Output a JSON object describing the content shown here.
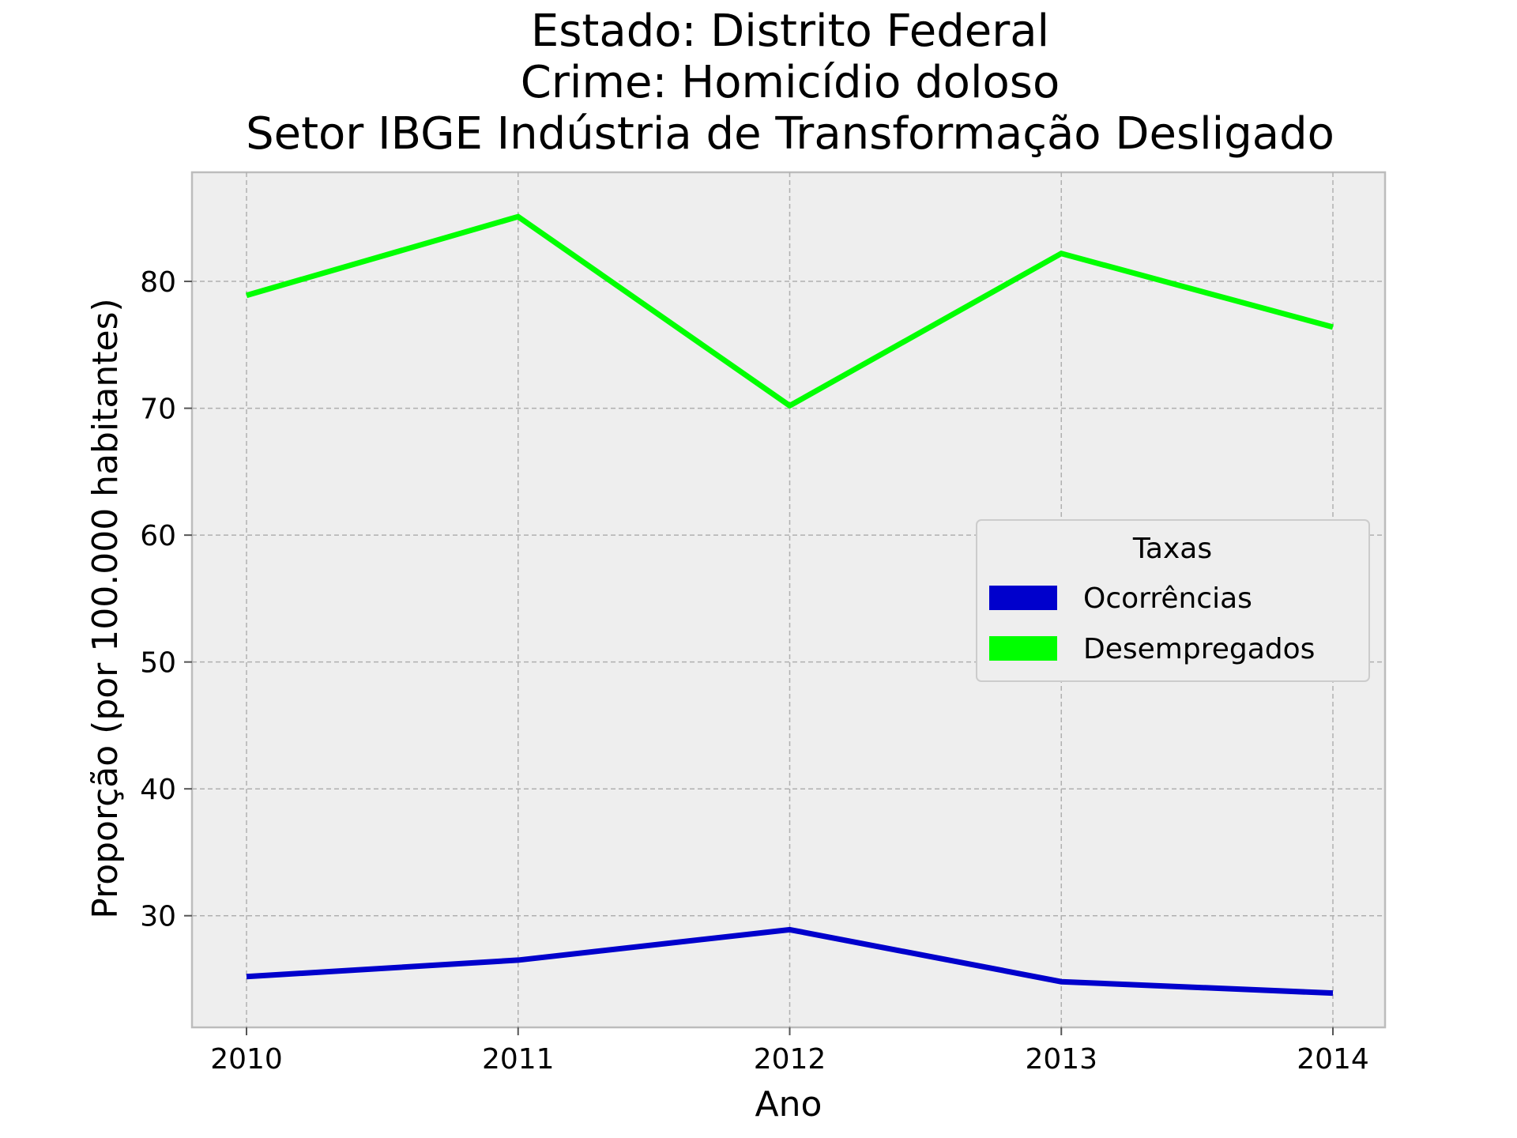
{
  "chart_data": {
    "type": "line",
    "title_lines": [
      "Estado: Distrito Federal",
      "Crime: Homicídio doloso",
      "Setor IBGE  Indústria de Transformação   Desligado"
    ],
    "xlabel": "Ano",
    "ylabel": "Proporção (por 100.000 habitantes)",
    "x": [
      "2010",
      "2011",
      "2012",
      "2013",
      "2014"
    ],
    "y_ticks": [
      "30",
      "40",
      "50",
      "60",
      "70",
      "80"
    ],
    "ylim": [
      21.2,
      88.6
    ],
    "grid": true,
    "legend": {
      "title": "Taxas",
      "placement": "center-right"
    },
    "series": [
      {
        "name": "Ocorrências",
        "color": "#0000cc",
        "values": [
          25.2,
          26.5,
          28.9,
          24.8,
          23.9
        ]
      },
      {
        "name": "Desempregados",
        "color": "#00ff00",
        "values": [
          78.9,
          85.1,
          70.2,
          82.2,
          76.4
        ]
      }
    ]
  }
}
